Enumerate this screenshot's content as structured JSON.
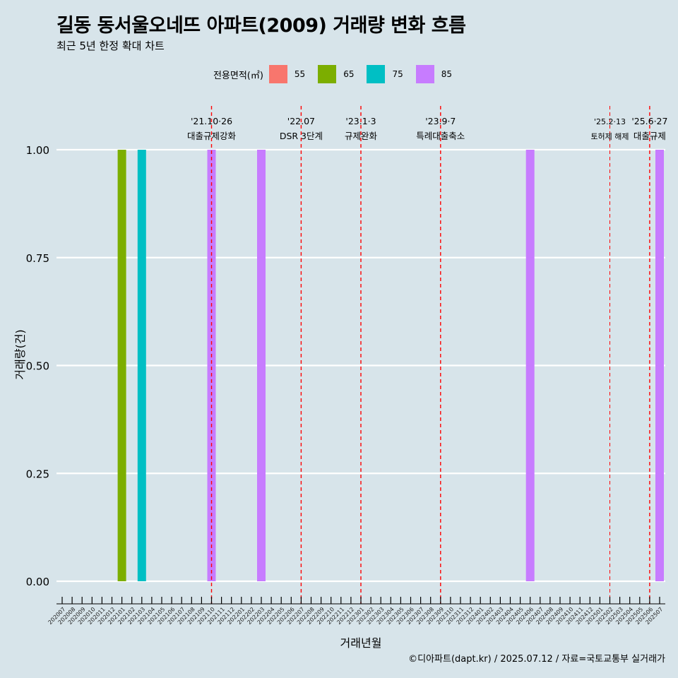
{
  "title": "길동 동서울오네뜨 아파트(2009) 거래량 변화 흐름",
  "subtitle": "최근 5년 한정 확대 차트",
  "caption": "©디아파트(dapt.kr) / 2025.07.12 / 자료=국토교통부 실거래가",
  "legend": {
    "title": "전용면적(㎡)",
    "items": [
      {
        "label": "55",
        "color": "#f8766d"
      },
      {
        "label": "65",
        "color": "#7cae00"
      },
      {
        "label": "75",
        "color": "#00bfc4"
      },
      {
        "label": "85",
        "color": "#c77cff"
      }
    ]
  },
  "chart_data": {
    "type": "bar",
    "xlabel": "거래년월",
    "ylabel": "거래량(건)",
    "ylim": [
      0,
      1
    ],
    "y_ticks": [
      "0.00",
      "0.25",
      "0.50",
      "0.75",
      "1.00"
    ],
    "grid": true,
    "legend_position": "top",
    "categories": [
      "202007",
      "202008",
      "202009",
      "202010",
      "202011",
      "202012",
      "202101",
      "202102",
      "202103",
      "202104",
      "202105",
      "202106",
      "202107",
      "202108",
      "202109",
      "202110",
      "202111",
      "202112",
      "202201",
      "202202",
      "202203",
      "202204",
      "202205",
      "202206",
      "202207",
      "202208",
      "202209",
      "202210",
      "202211",
      "202212",
      "202301",
      "202302",
      "202303",
      "202304",
      "202305",
      "202306",
      "202307",
      "202308",
      "202309",
      "202310",
      "202311",
      "202312",
      "202401",
      "202402",
      "202403",
      "202404",
      "202405",
      "202406",
      "202407",
      "202408",
      "202409",
      "202410",
      "202411",
      "202412",
      "202501",
      "202502",
      "202503",
      "202504",
      "202505",
      "202506",
      "202507"
    ],
    "bars": [
      {
        "x": "202101",
        "series": "65",
        "value": 1
      },
      {
        "x": "202103",
        "series": "75",
        "value": 1
      },
      {
        "x": "202110",
        "series": "85",
        "value": 1
      },
      {
        "x": "202203",
        "series": "85",
        "value": 1
      },
      {
        "x": "202406",
        "series": "85",
        "value": 1
      },
      {
        "x": "202507",
        "series": "85",
        "value": 1
      }
    ],
    "events": [
      {
        "x": "202110",
        "date": "'21.10·26",
        "label": "대출규제강화"
      },
      {
        "x": "202207",
        "date": "'22.07",
        "label": "DSR 3단계"
      },
      {
        "x": "202301",
        "date": "'23.1·3",
        "label": "규제완화"
      },
      {
        "x": "202309",
        "date": "'23.9·7",
        "label": "특례대출축소"
      },
      {
        "x": "202502",
        "date": "'25.2·13",
        "label": "토허제 해제"
      },
      {
        "x": "202506",
        "date": "'25.6·27",
        "label": "대출규제"
      }
    ]
  }
}
